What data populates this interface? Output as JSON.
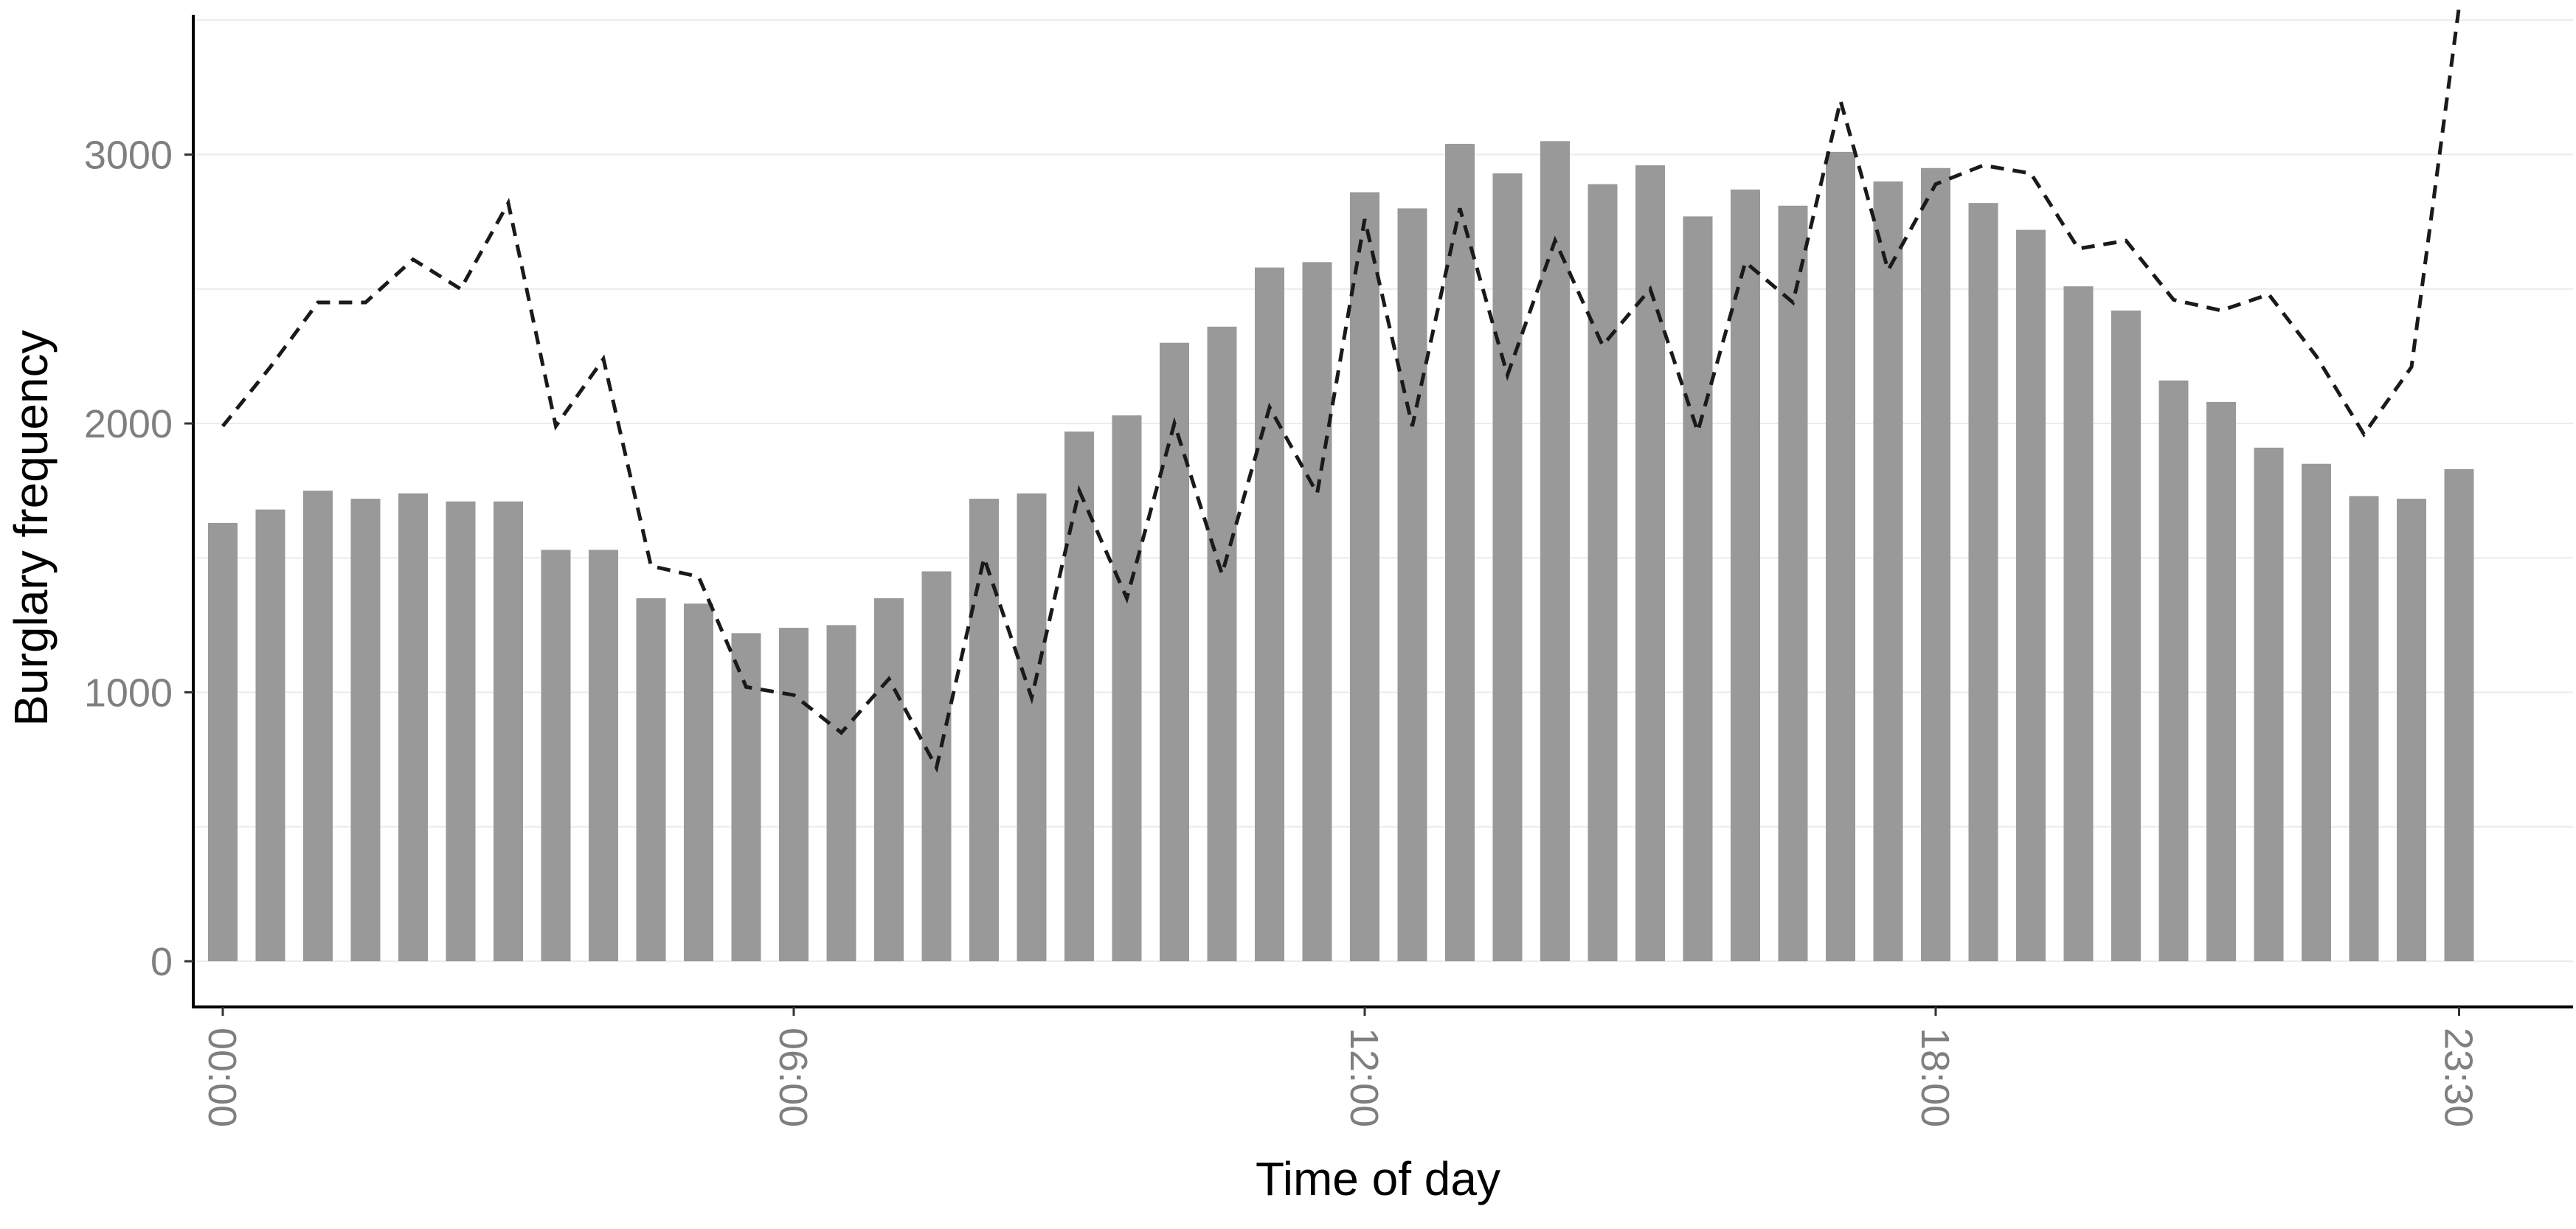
{
  "chart_data": {
    "type": "bar",
    "title": "",
    "xlabel": "Time of day",
    "ylabel": "Burglary frequency",
    "ylim": [
      -170,
      3520
    ],
    "grid": "horizontal",
    "legend": "none",
    "colors": {
      "bars": "#999999",
      "line": "#1a1a1a",
      "axis_text": "#7f7f7f"
    },
    "x_ticks": [
      {
        "index": 0,
        "label": "00:00"
      },
      {
        "index": 12,
        "label": "06:00"
      },
      {
        "index": 24,
        "label": "12:00"
      },
      {
        "index": 36,
        "label": "18:00"
      },
      {
        "index": 47,
        "label": "23:30"
      }
    ],
    "y_ticks": [
      0,
      1000,
      2000,
      3000
    ],
    "categories": [
      "00:00",
      "00:30",
      "01:00",
      "01:30",
      "02:00",
      "02:30",
      "03:00",
      "03:30",
      "04:00",
      "04:30",
      "05:00",
      "05:30",
      "06:00",
      "06:30",
      "07:00",
      "07:30",
      "08:00",
      "08:30",
      "09:00",
      "09:30",
      "10:00",
      "10:30",
      "11:00",
      "11:30",
      "12:00",
      "12:30",
      "13:00",
      "13:30",
      "14:00",
      "14:30",
      "15:00",
      "15:30",
      "16:00",
      "16:30",
      "17:00",
      "17:30",
      "18:00",
      "18:30",
      "19:00",
      "19:30",
      "20:00",
      "20:30",
      "21:00",
      "21:30",
      "22:00",
      "22:30",
      "23:00",
      "23:30"
    ],
    "series": [
      {
        "type": "bar",
        "values": [
          1630,
          1680,
          1750,
          1720,
          1740,
          1710,
          1710,
          1530,
          1530,
          1350,
          1330,
          1220,
          1240,
          1250,
          1350,
          1450,
          1720,
          1740,
          1970,
          2030,
          2300,
          2360,
          2580,
          2600,
          2860,
          2800,
          3040,
          2930,
          3050,
          2890,
          2960,
          2770,
          2870,
          2810,
          3010,
          2900,
          2950,
          2820,
          2720,
          2510,
          2420,
          2160,
          2080,
          1910,
          1850,
          1730,
          1720,
          1830
        ]
      },
      {
        "type": "line",
        "style": "dashed",
        "values": [
          1990,
          2210,
          2450,
          2450,
          2610,
          2500,
          2820,
          1990,
          2240,
          1470,
          1430,
          1020,
          990,
          850,
          1050,
          720,
          1500,
          980,
          1750,
          1350,
          2000,
          1440,
          2060,
          1740,
          2760,
          1990,
          2800,
          2180,
          2680,
          2290,
          2500,
          1970,
          2600,
          2450,
          3200,
          2570,
          2890,
          2960,
          2930,
          2650,
          2680,
          2460,
          2420,
          2480,
          2250,
          1960,
          2210,
          3550
        ]
      }
    ]
  }
}
